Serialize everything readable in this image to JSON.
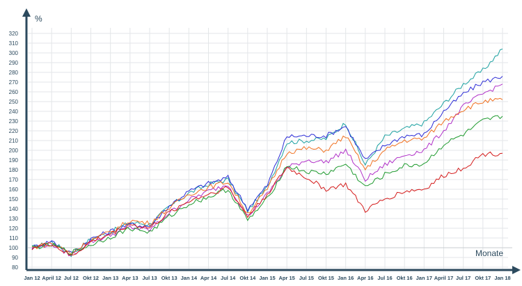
{
  "chart_data": {
    "type": "line",
    "xlabel": "Monate",
    "ylabel": "%",
    "ylim": [
      80,
      320
    ],
    "y_ticks": [
      80,
      90,
      100,
      110,
      120,
      130,
      140,
      150,
      160,
      170,
      180,
      190,
      200,
      210,
      220,
      230,
      240,
      250,
      260,
      270,
      280,
      290,
      300,
      310,
      320
    ],
    "x_tick_labels": [
      "Jan 12",
      "April 12",
      "Jul 12",
      "Okt 12",
      "Jan 13",
      "Apr 13",
      "Jul 13",
      "Okt 13",
      "Jan 14",
      "Apr 14",
      "Jul 14",
      "Okt 14",
      "Jan 15",
      "Apr 15",
      "Jul 15",
      "Okt 15",
      "Jan 16",
      "Apr 16",
      "Jul 16",
      "Okt 16",
      "Jan 17",
      "April 17",
      "Jul 17",
      "Okt 17",
      "Jan 18"
    ],
    "grid": true,
    "reference_line": 100,
    "series": [
      {
        "color": "#1aa0a0",
        "values": [
          100,
          106,
          93,
          109,
          116,
          126,
          124,
          142,
          156,
          165,
          170,
          138,
          162,
          208,
          210,
          212,
          228,
          185,
          214,
          222,
          228,
          248,
          268,
          282,
          304
        ]
      },
      {
        "color": "#2b2bd6",
        "values": [
          100,
          107,
          94,
          109,
          117,
          124,
          122,
          143,
          158,
          166,
          172,
          140,
          164,
          214,
          215,
          215,
          225,
          190,
          205,
          215,
          216,
          240,
          258,
          270,
          276
        ]
      },
      {
        "color": "#b030c8",
        "values": [
          100,
          104,
          92,
          106,
          113,
          121,
          118,
          136,
          149,
          158,
          165,
          132,
          155,
          182,
          190,
          188,
          200,
          170,
          185,
          195,
          200,
          220,
          245,
          258,
          268
        ]
      },
      {
        "color": "#f07020",
        "values": [
          100,
          105,
          94,
          108,
          116,
          128,
          125,
          141,
          155,
          162,
          168,
          135,
          160,
          198,
          202,
          200,
          215,
          180,
          200,
          210,
          212,
          230,
          242,
          250,
          252
        ]
      },
      {
        "color": "#1e9a2e",
        "values": [
          100,
          103,
          95,
          103,
          111,
          120,
          116,
          132,
          145,
          152,
          160,
          128,
          150,
          184,
          178,
          176,
          186,
          162,
          175,
          184,
          186,
          206,
          216,
          230,
          235
        ]
      },
      {
        "color": "#d41a1a",
        "values": [
          100,
          104,
          91,
          106,
          114,
          124,
          120,
          136,
          148,
          155,
          162,
          132,
          155,
          182,
          172,
          160,
          165,
          138,
          150,
          158,
          160,
          174,
          182,
          196,
          197
        ]
      }
    ]
  }
}
